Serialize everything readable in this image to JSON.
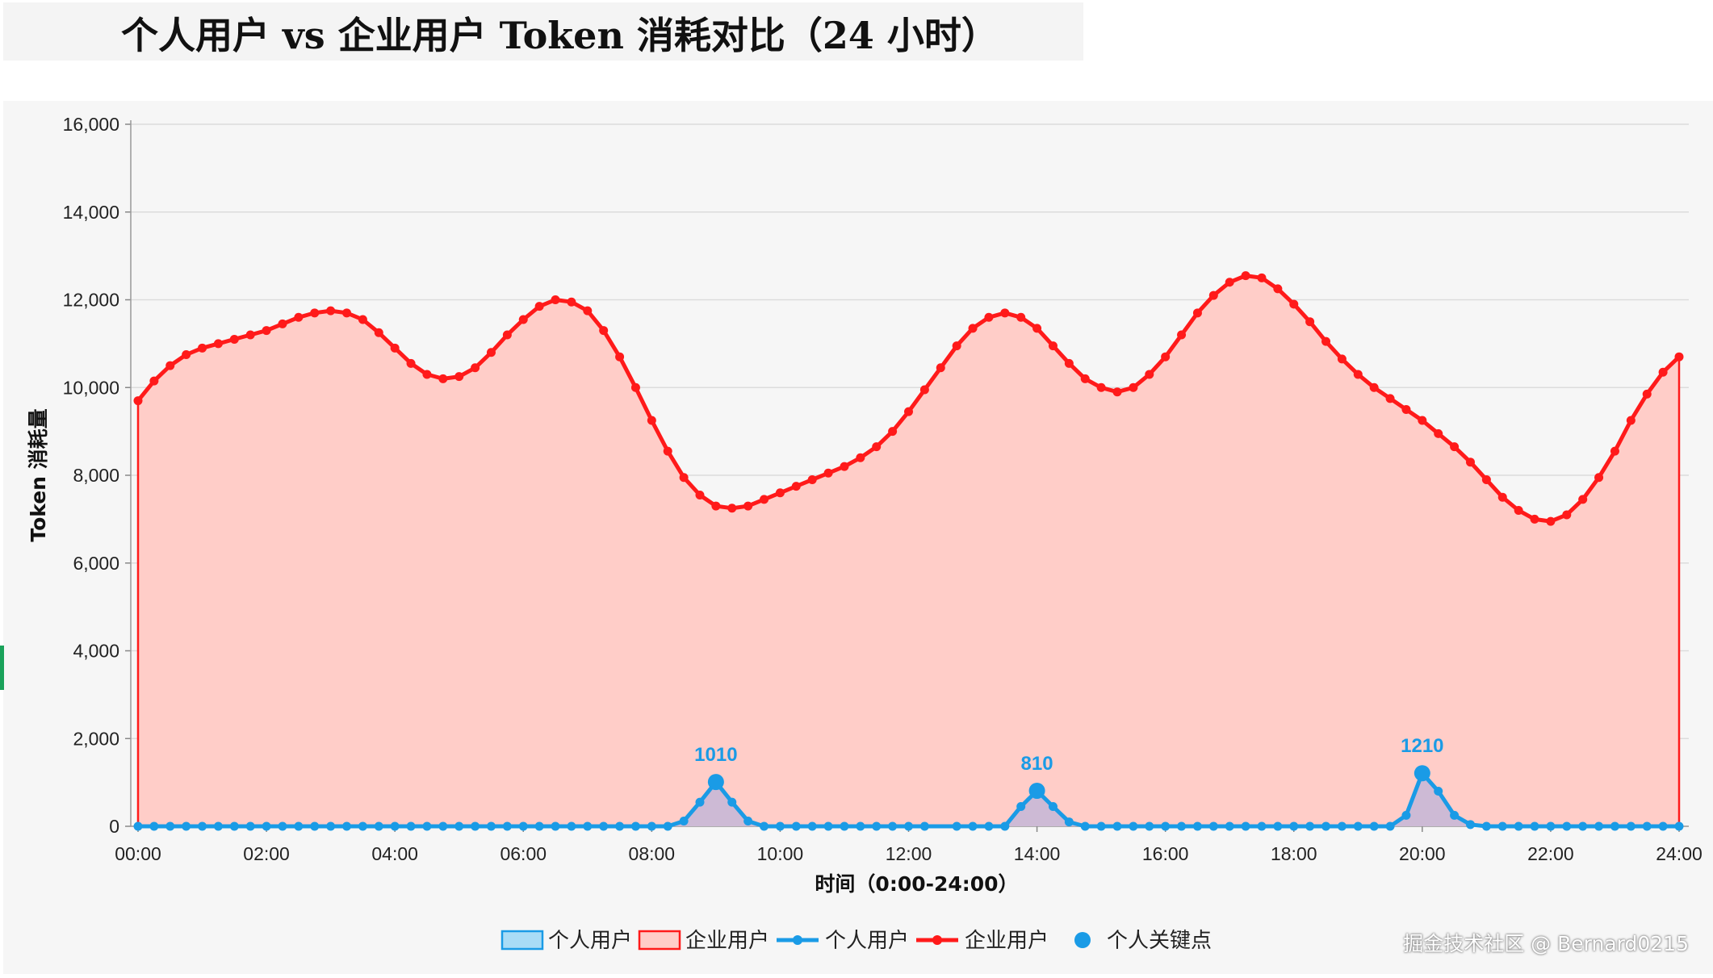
{
  "page": {
    "title": "个人用户 vs 企业用户 Token 消耗对比（24 小时）",
    "watermark": "掘金技术社区 @ Bernard0215"
  },
  "chart_data": {
    "type": "line",
    "title": "个人用户 vs 企业用户 Token 消耗对比（24 小时）",
    "xlabel": "时间（0:00-24:00）",
    "ylabel": "Token 消耗量",
    "xlim": [
      0,
      24
    ],
    "ylim": [
      0,
      16000
    ],
    "x_ticks": [
      "00:00",
      "02:00",
      "04:00",
      "06:00",
      "08:00",
      "10:00",
      "12:00",
      "14:00",
      "16:00",
      "18:00",
      "20:00",
      "22:00",
      "24:00"
    ],
    "y_ticks": [
      "0",
      "2,000",
      "4,000",
      "6,000",
      "8,000",
      "10,000",
      "12,000",
      "14,000",
      "16,000"
    ],
    "grid": true,
    "legend_position": "bottom-center",
    "legend": [
      "个人用户",
      "企业用户",
      "个人用户",
      "企业用户",
      "个人关键点"
    ],
    "colors": {
      "personal": "#1a9be6",
      "enterprise": "#ff1a1a",
      "enterprise_fill": "#ffcdc8",
      "personal_fill": "#c8b8d6"
    },
    "series": [
      {
        "name": "企业用户",
        "color": "#ff1a1a",
        "area": true,
        "points": [
          [
            0,
            9700
          ],
          [
            0.25,
            10150
          ],
          [
            0.5,
            10500
          ],
          [
            0.75,
            10750
          ],
          [
            1,
            10900
          ],
          [
            1.25,
            11000
          ],
          [
            1.5,
            11100
          ],
          [
            1.75,
            11200
          ],
          [
            2,
            11300
          ],
          [
            2.25,
            11450
          ],
          [
            2.5,
            11600
          ],
          [
            2.75,
            11700
          ],
          [
            3,
            11750
          ],
          [
            3.25,
            11700
          ],
          [
            3.5,
            11550
          ],
          [
            3.75,
            11250
          ],
          [
            4,
            10900
          ],
          [
            4.25,
            10550
          ],
          [
            4.5,
            10300
          ],
          [
            4.75,
            10200
          ],
          [
            5,
            10250
          ],
          [
            5.25,
            10450
          ],
          [
            5.5,
            10800
          ],
          [
            5.75,
            11200
          ],
          [
            6,
            11550
          ],
          [
            6.25,
            11850
          ],
          [
            6.5,
            12000
          ],
          [
            6.75,
            11950
          ],
          [
            7,
            11750
          ],
          [
            7.25,
            11300
          ],
          [
            7.5,
            10700
          ],
          [
            7.75,
            10000
          ],
          [
            8,
            9250
          ],
          [
            8.25,
            8550
          ],
          [
            8.5,
            7950
          ],
          [
            8.75,
            7550
          ],
          [
            9,
            7300
          ],
          [
            9.25,
            7250
          ],
          [
            9.5,
            7300
          ],
          [
            9.75,
            7450
          ],
          [
            10,
            7600
          ],
          [
            10.25,
            7750
          ],
          [
            10.5,
            7900
          ],
          [
            10.75,
            8050
          ],
          [
            11,
            8200
          ],
          [
            11.25,
            8400
          ],
          [
            11.5,
            8650
          ],
          [
            11.75,
            9000
          ],
          [
            12,
            9450
          ],
          [
            12.25,
            9950
          ],
          [
            12.5,
            10450
          ],
          [
            12.75,
            10950
          ],
          [
            13,
            11350
          ],
          [
            13.25,
            11600
          ],
          [
            13.5,
            11700
          ],
          [
            13.75,
            11600
          ],
          [
            14,
            11350
          ],
          [
            14.25,
            10950
          ],
          [
            14.5,
            10550
          ],
          [
            14.75,
            10200
          ],
          [
            15,
            10000
          ],
          [
            15.25,
            9900
          ],
          [
            15.5,
            10000
          ],
          [
            15.75,
            10300
          ],
          [
            16,
            10700
          ],
          [
            16.25,
            11200
          ],
          [
            16.5,
            11700
          ],
          [
            16.75,
            12100
          ],
          [
            17,
            12400
          ],
          [
            17.25,
            12550
          ],
          [
            17.5,
            12500
          ],
          [
            17.75,
            12250
          ],
          [
            18,
            11900
          ],
          [
            18.25,
            11500
          ],
          [
            18.5,
            11050
          ],
          [
            18.75,
            10650
          ],
          [
            19,
            10300
          ],
          [
            19.25,
            10000
          ],
          [
            19.5,
            9750
          ],
          [
            19.75,
            9500
          ],
          [
            20,
            9250
          ],
          [
            20.25,
            8950
          ],
          [
            20.5,
            8650
          ],
          [
            20.75,
            8300
          ],
          [
            21,
            7900
          ],
          [
            21.25,
            7500
          ],
          [
            21.5,
            7200
          ],
          [
            21.75,
            7000
          ],
          [
            22,
            6950
          ],
          [
            22.25,
            7100
          ],
          [
            22.5,
            7450
          ],
          [
            22.75,
            7950
          ],
          [
            23,
            8550
          ],
          [
            23.25,
            9250
          ],
          [
            23.5,
            9850
          ],
          [
            23.75,
            10350
          ],
          [
            24,
            10700
          ],
          [
            24.25,
            10850
          ]
        ]
      },
      {
        "name": "个人用户",
        "color": "#1a9be6",
        "area": true,
        "points": [
          [
            0,
            0
          ],
          [
            0.25,
            0
          ],
          [
            0.5,
            0
          ],
          [
            0.75,
            0
          ],
          [
            1,
            0
          ],
          [
            1.25,
            0
          ],
          [
            1.5,
            0
          ],
          [
            1.75,
            0
          ],
          [
            2,
            0
          ],
          [
            2.25,
            0
          ],
          [
            2.5,
            0
          ],
          [
            2.75,
            0
          ],
          [
            3,
            0
          ],
          [
            3.25,
            0
          ],
          [
            3.5,
            0
          ],
          [
            3.75,
            0
          ],
          [
            4,
            0
          ],
          [
            4.25,
            0
          ],
          [
            4.5,
            0
          ],
          [
            4.75,
            0
          ],
          [
            5,
            0
          ],
          [
            5.25,
            0
          ],
          [
            5.5,
            0
          ],
          [
            5.75,
            0
          ],
          [
            6,
            0
          ],
          [
            6.25,
            0
          ],
          [
            6.5,
            0
          ],
          [
            6.75,
            0
          ],
          [
            7,
            0
          ],
          [
            7.25,
            0
          ],
          [
            7.5,
            0
          ],
          [
            7.75,
            0
          ],
          [
            8,
            0
          ],
          [
            8.25,
            0
          ],
          [
            8.5,
            120
          ],
          [
            8.75,
            550
          ],
          [
            9,
            1010
          ],
          [
            9.25,
            550
          ],
          [
            9.5,
            120
          ],
          [
            9.75,
            0
          ],
          [
            10,
            0
          ],
          [
            10.25,
            0
          ],
          [
            10.5,
            0
          ],
          [
            10.75,
            0
          ],
          [
            11,
            0
          ],
          [
            11.25,
            0
          ],
          [
            11.5,
            0
          ],
          [
            11.75,
            0
          ],
          [
            12,
            0
          ],
          [
            12.25,
            0
          ],
          [
            12.75,
            0
          ],
          [
            13,
            0
          ],
          [
            13.25,
            0
          ],
          [
            13.5,
            0
          ],
          [
            13.75,
            450
          ],
          [
            14,
            810
          ],
          [
            14.25,
            450
          ],
          [
            14.5,
            100
          ],
          [
            14.75,
            0
          ],
          [
            15,
            0
          ],
          [
            15.25,
            0
          ],
          [
            15.5,
            0
          ],
          [
            15.75,
            0
          ],
          [
            16,
            0
          ],
          [
            16.25,
            0
          ],
          [
            16.5,
            0
          ],
          [
            16.75,
            0
          ],
          [
            17,
            0
          ],
          [
            17.25,
            0
          ],
          [
            17.5,
            0
          ],
          [
            17.75,
            0
          ],
          [
            18,
            0
          ],
          [
            18.25,
            0
          ],
          [
            18.5,
            0
          ],
          [
            18.75,
            0
          ],
          [
            19,
            0
          ],
          [
            19.25,
            0
          ],
          [
            19.5,
            0
          ],
          [
            19.75,
            250
          ],
          [
            20,
            1210
          ],
          [
            20.25,
            800
          ],
          [
            20.5,
            250
          ],
          [
            20.75,
            40
          ],
          [
            21,
            0
          ],
          [
            21.25,
            0
          ],
          [
            21.5,
            0
          ],
          [
            21.75,
            0
          ],
          [
            22,
            0
          ],
          [
            22.25,
            0
          ],
          [
            22.5,
            0
          ],
          [
            22.75,
            0
          ],
          [
            23,
            0
          ],
          [
            23.25,
            0
          ],
          [
            23.5,
            0
          ],
          [
            23.75,
            0
          ],
          [
            24,
            0
          ]
        ]
      },
      {
        "name": "个人关键点",
        "color": "#1a9be6",
        "type": "scatter",
        "points": [
          [
            9,
            1010
          ],
          [
            14,
            810
          ],
          [
            20,
            1210
          ]
        ],
        "labels": [
          "1010",
          "810",
          "1210"
        ]
      }
    ]
  }
}
